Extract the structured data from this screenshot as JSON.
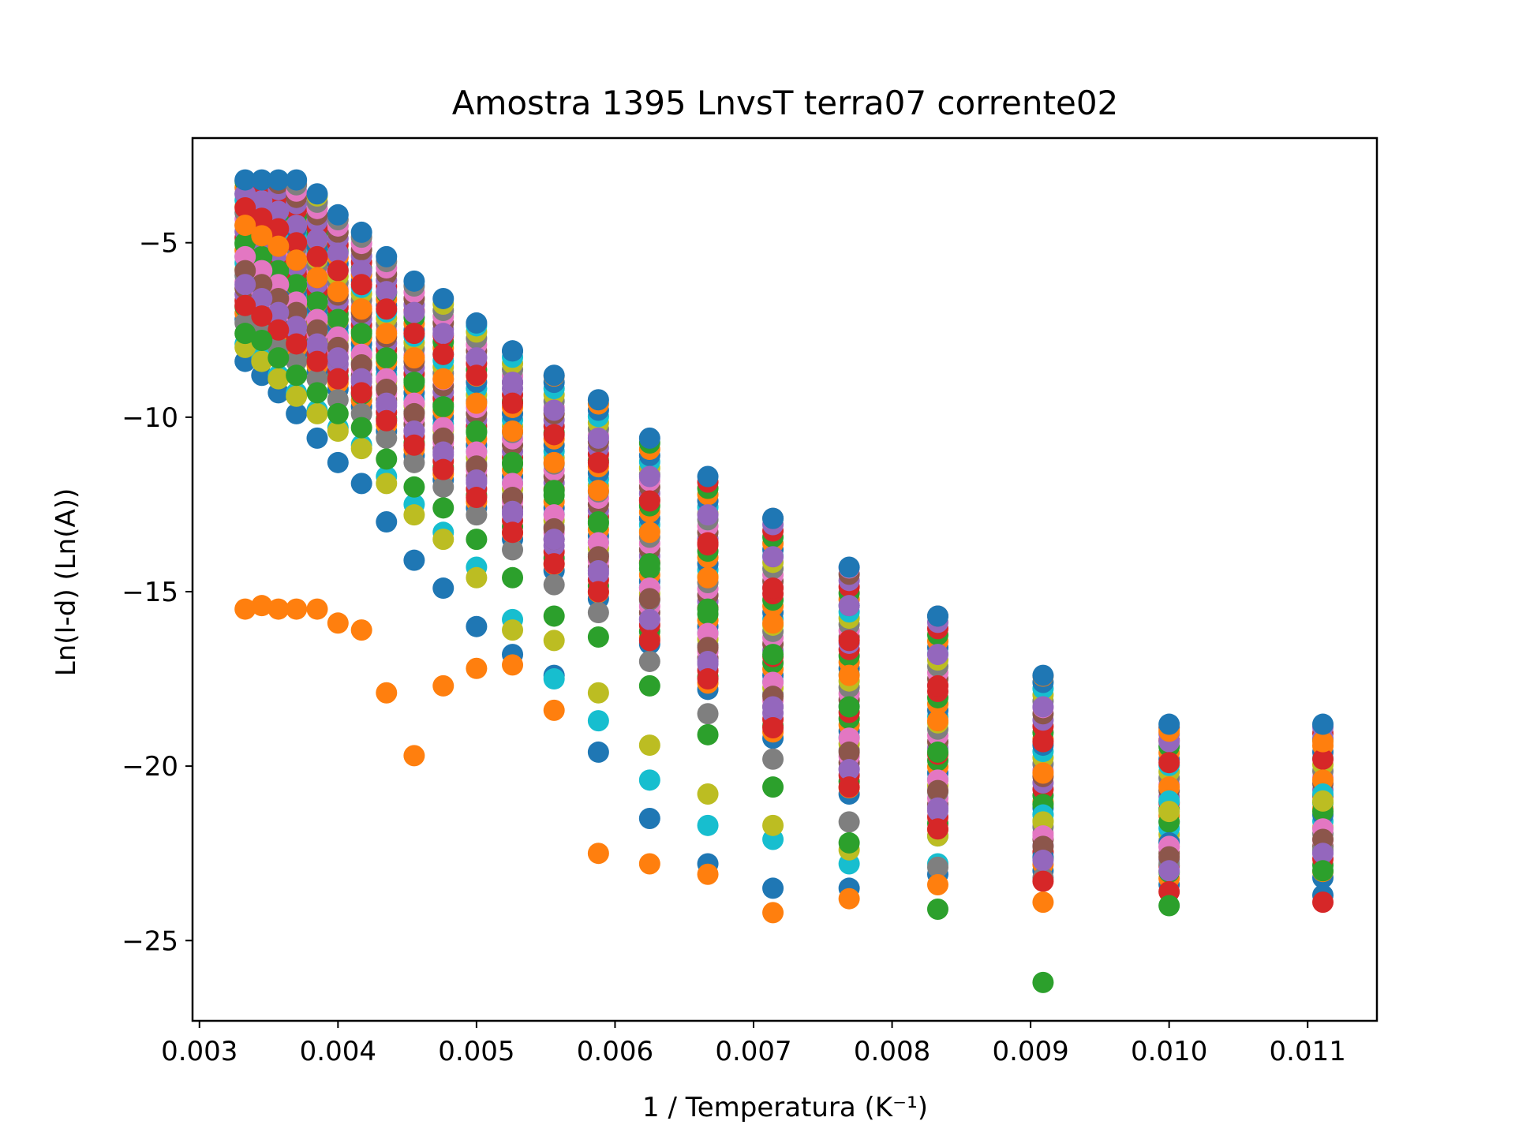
{
  "chart_data": {
    "type": "scatter",
    "title": "Amostra 1395 LnvsT terra07 corrente02",
    "xlabel": "1 / Temperatura (K⁻¹)",
    "ylabel": "Ln(I-d) (Ln(A))",
    "xlim": [
      0.00295,
      0.0115
    ],
    "ylim": [
      -27.3,
      -2
    ],
    "x_ticks": [
      0.003,
      0.004,
      0.005,
      0.006,
      0.007,
      0.008,
      0.009,
      0.01,
      0.011
    ],
    "x_tick_labels": [
      "0.003",
      "0.004",
      "0.005",
      "0.006",
      "0.007",
      "0.008",
      "0.009",
      "0.010",
      "0.011"
    ],
    "y_ticks": [
      -5,
      -10,
      -15,
      -20,
      -25
    ],
    "y_tick_labels": [
      "−5",
      "−10",
      "−15",
      "−20",
      "−25"
    ],
    "grid": false,
    "legend": "none",
    "palette": [
      "#1f77b4",
      "#ff7f0e",
      "#2ca02c",
      "#d62728",
      "#9467bd",
      "#8c564b",
      "#e377c2",
      "#7f7f7f",
      "#bcbd22",
      "#17becf"
    ],
    "x": [
      0.00333,
      0.00345,
      0.00357,
      0.0037,
      0.00385,
      0.004,
      0.00417,
      0.00435,
      0.00455,
      0.00476,
      0.005,
      0.00526,
      0.00556,
      0.00588,
      0.00625,
      0.00667,
      0.00714,
      0.00769,
      0.00833,
      0.00909,
      0.01,
      0.01111
    ],
    "series": [
      {
        "values": [
          -3.2,
          -3.2,
          -3.2,
          -3.2,
          -3.6,
          -4.2,
          -4.7,
          -5.4,
          -6.1,
          -6.6,
          -7.3,
          -8.1,
          -8.8,
          -9.5,
          -10.6,
          -11.7,
          -12.9,
          -14.3,
          -15.7,
          -17.4,
          -18.8,
          -18.8
        ]
      },
      {
        "values": [
          -15.5,
          -15.4,
          -15.5,
          -15.5,
          -15.5,
          -15.9,
          -16.1,
          -17.9,
          -19.7,
          -17.7,
          -17.2,
          -17.1,
          -18.4,
          -22.5,
          -22.8,
          -23.1,
          -24.2,
          -23.8,
          -23.4,
          -23.9,
          -19.0,
          -19.3
        ]
      },
      {
        "values": [
          -7.6,
          -7.8,
          -8.3,
          -8.8,
          -9.3,
          -9.9,
          -10.3,
          -11.2,
          -12.0,
          -12.6,
          -13.5,
          -14.6,
          -15.7,
          -16.3,
          -17.7,
          -19.1,
          -20.6,
          -22.2,
          -24.1,
          -26.2,
          -24.0,
          -23.0
        ]
      },
      {
        "values": [
          -6.8,
          -7.1,
          -7.5,
          -7.9,
          -8.4,
          -8.9,
          -9.3,
          -10.1,
          -10.8,
          -11.5,
          -12.3,
          -13.3,
          -14.2,
          -15.0,
          -16.4,
          -17.5,
          -18.9,
          -20.6,
          -21.8,
          -23.3,
          -23.6,
          -23.9
        ]
      },
      {
        "values": [
          -6.2,
          -6.6,
          -7.0,
          -7.4,
          -7.9,
          -8.3,
          -8.9,
          -9.6,
          -10.4,
          -11.0,
          -11.8,
          -12.7,
          -13.5,
          -14.4,
          -15.8,
          -17.0,
          -18.3,
          -20.1,
          -21.2,
          -22.7,
          -23.0,
          -22.5
        ]
      },
      {
        "values": [
          -5.8,
          -6.2,
          -6.6,
          -7.0,
          -7.5,
          -8.0,
          -8.5,
          -9.2,
          -9.9,
          -10.6,
          -11.4,
          -12.3,
          -13.2,
          -14.0,
          -15.2,
          -16.6,
          -18.0,
          -19.6,
          -20.7,
          -22.3,
          -22.6,
          -22.1
        ]
      },
      {
        "values": [
          -5.4,
          -5.8,
          -6.2,
          -6.7,
          -7.2,
          -7.7,
          -8.2,
          -8.9,
          -9.6,
          -10.3,
          -11.0,
          -11.9,
          -12.8,
          -13.6,
          -14.9,
          -16.2,
          -17.6,
          -19.2,
          -20.4,
          -22.0,
          -22.3,
          -21.8
        ]
      },
      {
        "values": [
          -7.3,
          -7.6,
          -8.0,
          -8.4,
          -8.9,
          -9.5,
          -9.9,
          -10.6,
          -11.3,
          -12.0,
          -12.8,
          -13.8,
          -14.8,
          -15.6,
          -17.0,
          -18.5,
          -19.8,
          -21.6,
          -22.9,
          -23.2,
          -22.8,
          -22.4
        ]
      },
      {
        "values": [
          -8.0,
          -8.4,
          -8.9,
          -9.4,
          -9.9,
          -10.4,
          -10.9,
          -11.9,
          -12.8,
          -13.5,
          -14.6,
          -16.1,
          -16.4,
          -17.9,
          -19.4,
          -20.8,
          -21.7,
          -22.4,
          -22.0,
          -21.6,
          -21.3,
          -21.0
        ]
      },
      {
        "values": [
          -7.9,
          -8.3,
          -8.8,
          -9.3,
          -9.8,
          -10.3,
          -10.8,
          -11.7,
          -12.5,
          -13.3,
          -14.3,
          -15.8,
          -17.5,
          -18.7,
          -20.4,
          -21.7,
          -22.1,
          -22.8,
          -22.8,
          -21.4,
          -21.0,
          -20.8
        ]
      },
      {
        "values": [
          -8.4,
          -8.8,
          -9.3,
          -9.9,
          -10.6,
          -11.3,
          -11.9,
          -13.0,
          -14.1,
          -14.9,
          -16.0,
          -16.8,
          -17.4,
          -19.6,
          -21.5,
          -22.8,
          -23.5,
          -23.5,
          -23.1,
          -22.6,
          -22.2,
          -23.7
        ]
      },
      {
        "values": [
          -4.5,
          -4.8,
          -5.1,
          -5.5,
          -6.0,
          -6.4,
          -6.9,
          -7.6,
          -8.3,
          -8.9,
          -9.6,
          -10.4,
          -11.3,
          -12.1,
          -13.3,
          -14.6,
          -15.9,
          -17.4,
          -18.7,
          -20.2,
          -20.6,
          -20.4
        ]
      },
      {
        "values": [
          -5.0,
          -5.4,
          -5.8,
          -6.2,
          -6.7,
          -7.2,
          -7.6,
          -8.3,
          -9.0,
          -9.7,
          -10.4,
          -11.3,
          -12.1,
          -13.0,
          -14.2,
          -15.5,
          -16.8,
          -18.3,
          -19.6,
          -21.1,
          -21.6,
          -21.3
        ]
      },
      {
        "values": [
          -4.0,
          -4.3,
          -4.6,
          -5.0,
          -5.4,
          -5.8,
          -6.2,
          -6.9,
          -7.6,
          -8.2,
          -8.8,
          -9.6,
          -10.5,
          -11.3,
          -12.4,
          -13.6,
          -14.9,
          -16.4,
          -17.7,
          -19.3,
          -19.9,
          -19.8
        ]
      },
      {
        "values": [
          -3.6,
          -3.8,
          -4.1,
          -4.5,
          -4.9,
          -5.3,
          -5.8,
          -6.4,
          -7.0,
          -7.6,
          -8.3,
          -9.0,
          -9.8,
          -10.6,
          -11.7,
          -12.8,
          -14.0,
          -15.4,
          -16.8,
          -18.3,
          -19.3,
          -19.2
        ]
      }
    ],
    "column_fill": {
      "columns": [
        {
          "x": 0.00333,
          "y_top": -3.2,
          "y_bottom": -7.2
        },
        {
          "x": 0.00345,
          "y_top": -3.2,
          "y_bottom": -7.5
        },
        {
          "x": 0.00357,
          "y_top": -3.2,
          "y_bottom": -7.8
        },
        {
          "x": 0.0037,
          "y_top": -3.2,
          "y_bottom": -8.2
        },
        {
          "x": 0.00385,
          "y_top": -3.6,
          "y_bottom": -8.7
        },
        {
          "x": 0.004,
          "y_top": -4.2,
          "y_bottom": -9.2
        },
        {
          "x": 0.00417,
          "y_top": -4.7,
          "y_bottom": -9.7
        },
        {
          "x": 0.00435,
          "y_top": -5.4,
          "y_bottom": -10.4
        },
        {
          "x": 0.00455,
          "y_top": -6.1,
          "y_bottom": -11.1
        },
        {
          "x": 0.00476,
          "y_top": -6.6,
          "y_bottom": -11.8
        },
        {
          "x": 0.005,
          "y_top": -7.3,
          "y_bottom": -12.6
        },
        {
          "x": 0.00526,
          "y_top": -8.1,
          "y_bottom": -13.5
        },
        {
          "x": 0.00556,
          "y_top": -8.8,
          "y_bottom": -14.4
        },
        {
          "x": 0.00588,
          "y_top": -9.5,
          "y_bottom": -15.2
        },
        {
          "x": 0.00625,
          "y_top": -10.6,
          "y_bottom": -16.5
        },
        {
          "x": 0.00667,
          "y_top": -11.7,
          "y_bottom": -17.8
        },
        {
          "x": 0.00714,
          "y_top": -12.9,
          "y_bottom": -19.2
        },
        {
          "x": 0.00769,
          "y_top": -14.3,
          "y_bottom": -20.8
        },
        {
          "x": 0.00833,
          "y_top": -15.7,
          "y_bottom": -22.0
        },
        {
          "x": 0.00909,
          "y_top": -17.4,
          "y_bottom": -23.0
        },
        {
          "x": 0.01,
          "y_top": -18.8,
          "y_bottom": -23.4
        },
        {
          "x": 0.01111,
          "y_top": -18.8,
          "y_bottom": -23.2
        }
      ],
      "spacing": 0.18
    }
  }
}
